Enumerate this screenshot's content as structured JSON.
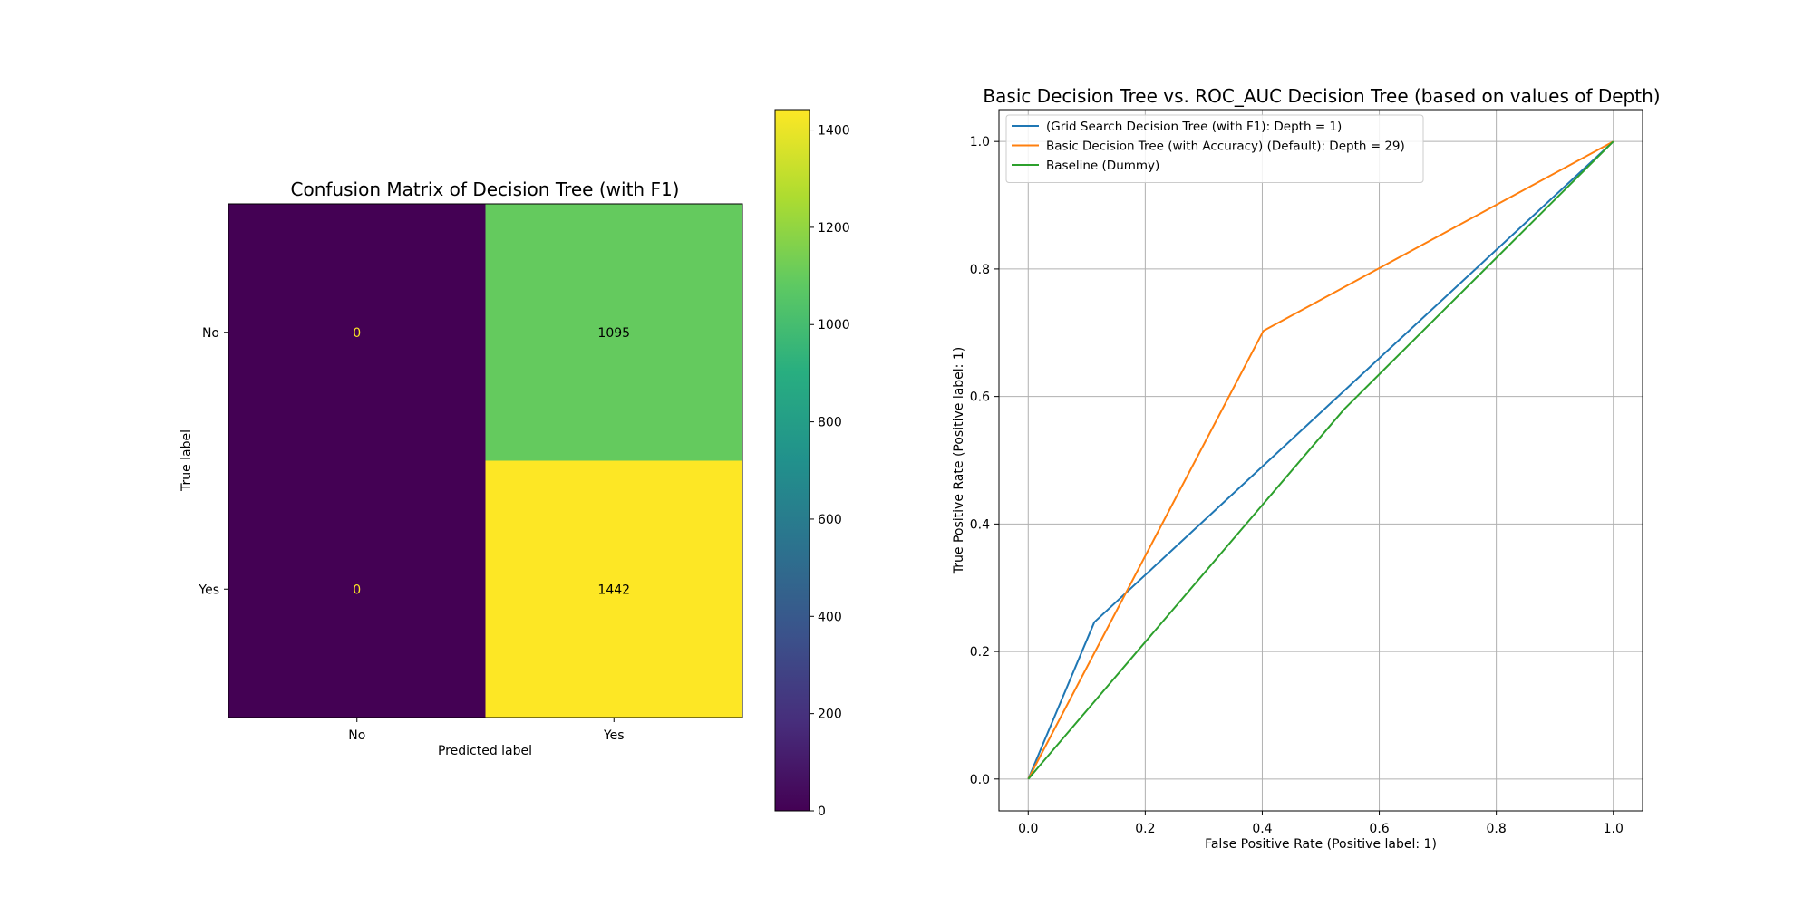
{
  "chart_data": [
    {
      "type": "heatmap",
      "title": "Confusion Matrix of Decision Tree (with F1)",
      "xlabel": "Predicted label",
      "ylabel": "True label",
      "x_categories": [
        "No",
        "Yes"
      ],
      "y_categories": [
        "No",
        "Yes"
      ],
      "values": [
        [
          0,
          1095
        ],
        [
          0,
          1442
        ]
      ],
      "colormap": "viridis",
      "colorbar": {
        "range": [
          0,
          1442
        ],
        "ticks": [
          0,
          200,
          400,
          600,
          800,
          1000,
          1200,
          1400
        ]
      },
      "text_colors": {
        "on_dark": "#fde725",
        "on_light": "#000000"
      }
    },
    {
      "type": "line",
      "title": "Basic Decision Tree vs. ROC_AUC Decision Tree (based on values of Depth)",
      "xlabel": "False Positive Rate (Positive label: 1)",
      "ylabel": "True Positive Rate (Positive label: 1)",
      "xlim": [
        -0.05,
        1.05
      ],
      "ylim": [
        -0.05,
        1.05
      ],
      "xticks": [
        "0.0",
        "0.2",
        "0.4",
        "0.6",
        "0.8",
        "1.0"
      ],
      "yticks": [
        "0.0",
        "0.2",
        "0.4",
        "0.6",
        "0.8",
        "1.0"
      ],
      "grid": true,
      "legend_position": "top-left",
      "series": [
        {
          "name": "(Grid Search Decision Tree (with F1): Depth = 1)",
          "color": "#1f77b4",
          "x": [
            0.0,
            0.113,
            1.0
          ],
          "y": [
            0.0,
            0.246,
            1.0
          ]
        },
        {
          "name": "Basic Decision Tree (with Accuracy) (Default): Depth = 29)",
          "color": "#ff7f0e",
          "x": [
            0.0,
            0.402,
            1.0
          ],
          "y": [
            0.0,
            0.703,
            1.0
          ]
        },
        {
          "name": "Baseline (Dummy)",
          "color": "#2ca02c",
          "x": [
            0.0,
            0.54,
            1.0
          ],
          "y": [
            0.0,
            0.58,
            1.0
          ]
        }
      ]
    }
  ]
}
